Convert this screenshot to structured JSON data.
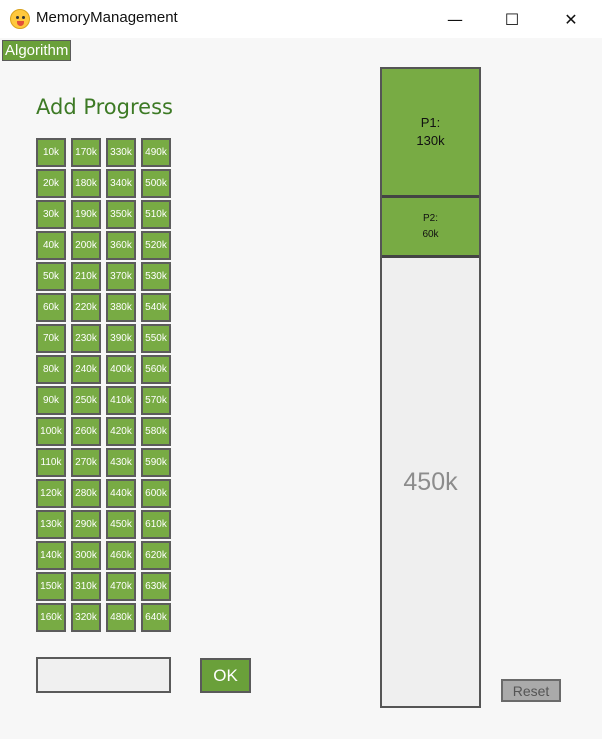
{
  "window": {
    "title": "MemoryManagement",
    "icon": "duck-face-icon",
    "controls": {
      "minimize": "—",
      "maximize": "☐",
      "close": "✕"
    }
  },
  "menu": {
    "algorithm": "Algorithm"
  },
  "add_progress": {
    "heading": "Add Progress",
    "sizes": [
      [
        "10k",
        "170k",
        "330k",
        "490k"
      ],
      [
        "20k",
        "180k",
        "340k",
        "500k"
      ],
      [
        "30k",
        "190k",
        "350k",
        "510k"
      ],
      [
        "40k",
        "200k",
        "360k",
        "520k"
      ],
      [
        "50k",
        "210k",
        "370k",
        "530k"
      ],
      [
        "60k",
        "220k",
        "380k",
        "540k"
      ],
      [
        "70k",
        "230k",
        "390k",
        "550k"
      ],
      [
        "80k",
        "240k",
        "400k",
        "560k"
      ],
      [
        "90k",
        "250k",
        "410k",
        "570k"
      ],
      [
        "100k",
        "260k",
        "420k",
        "580k"
      ],
      [
        "110k",
        "270k",
        "430k",
        "590k"
      ],
      [
        "120k",
        "280k",
        "440k",
        "600k"
      ],
      [
        "130k",
        "290k",
        "450k",
        "610k"
      ],
      [
        "140k",
        "300k",
        "460k",
        "620k"
      ],
      [
        "150k",
        "310k",
        "470k",
        "630k"
      ],
      [
        "160k",
        "320k",
        "480k",
        "640k"
      ]
    ],
    "input_value": "",
    "ok_label": "OK"
  },
  "memory": {
    "total_k": 640,
    "blocks": [
      {
        "name": "P1:",
        "size": "130k",
        "size_k": 130,
        "state": "used"
      },
      {
        "name": "P2:",
        "size": "60k",
        "size_k": 60,
        "state": "used"
      },
      {
        "size": "450k",
        "size_k": 450,
        "state": "free"
      }
    ]
  },
  "reset_label": "Reset",
  "colors": {
    "accent_green": "#78ab44",
    "heading_green": "#3d7a25",
    "border": "#555555",
    "free_block": "#efefef",
    "reset_gray": "#aaaaaa"
  }
}
